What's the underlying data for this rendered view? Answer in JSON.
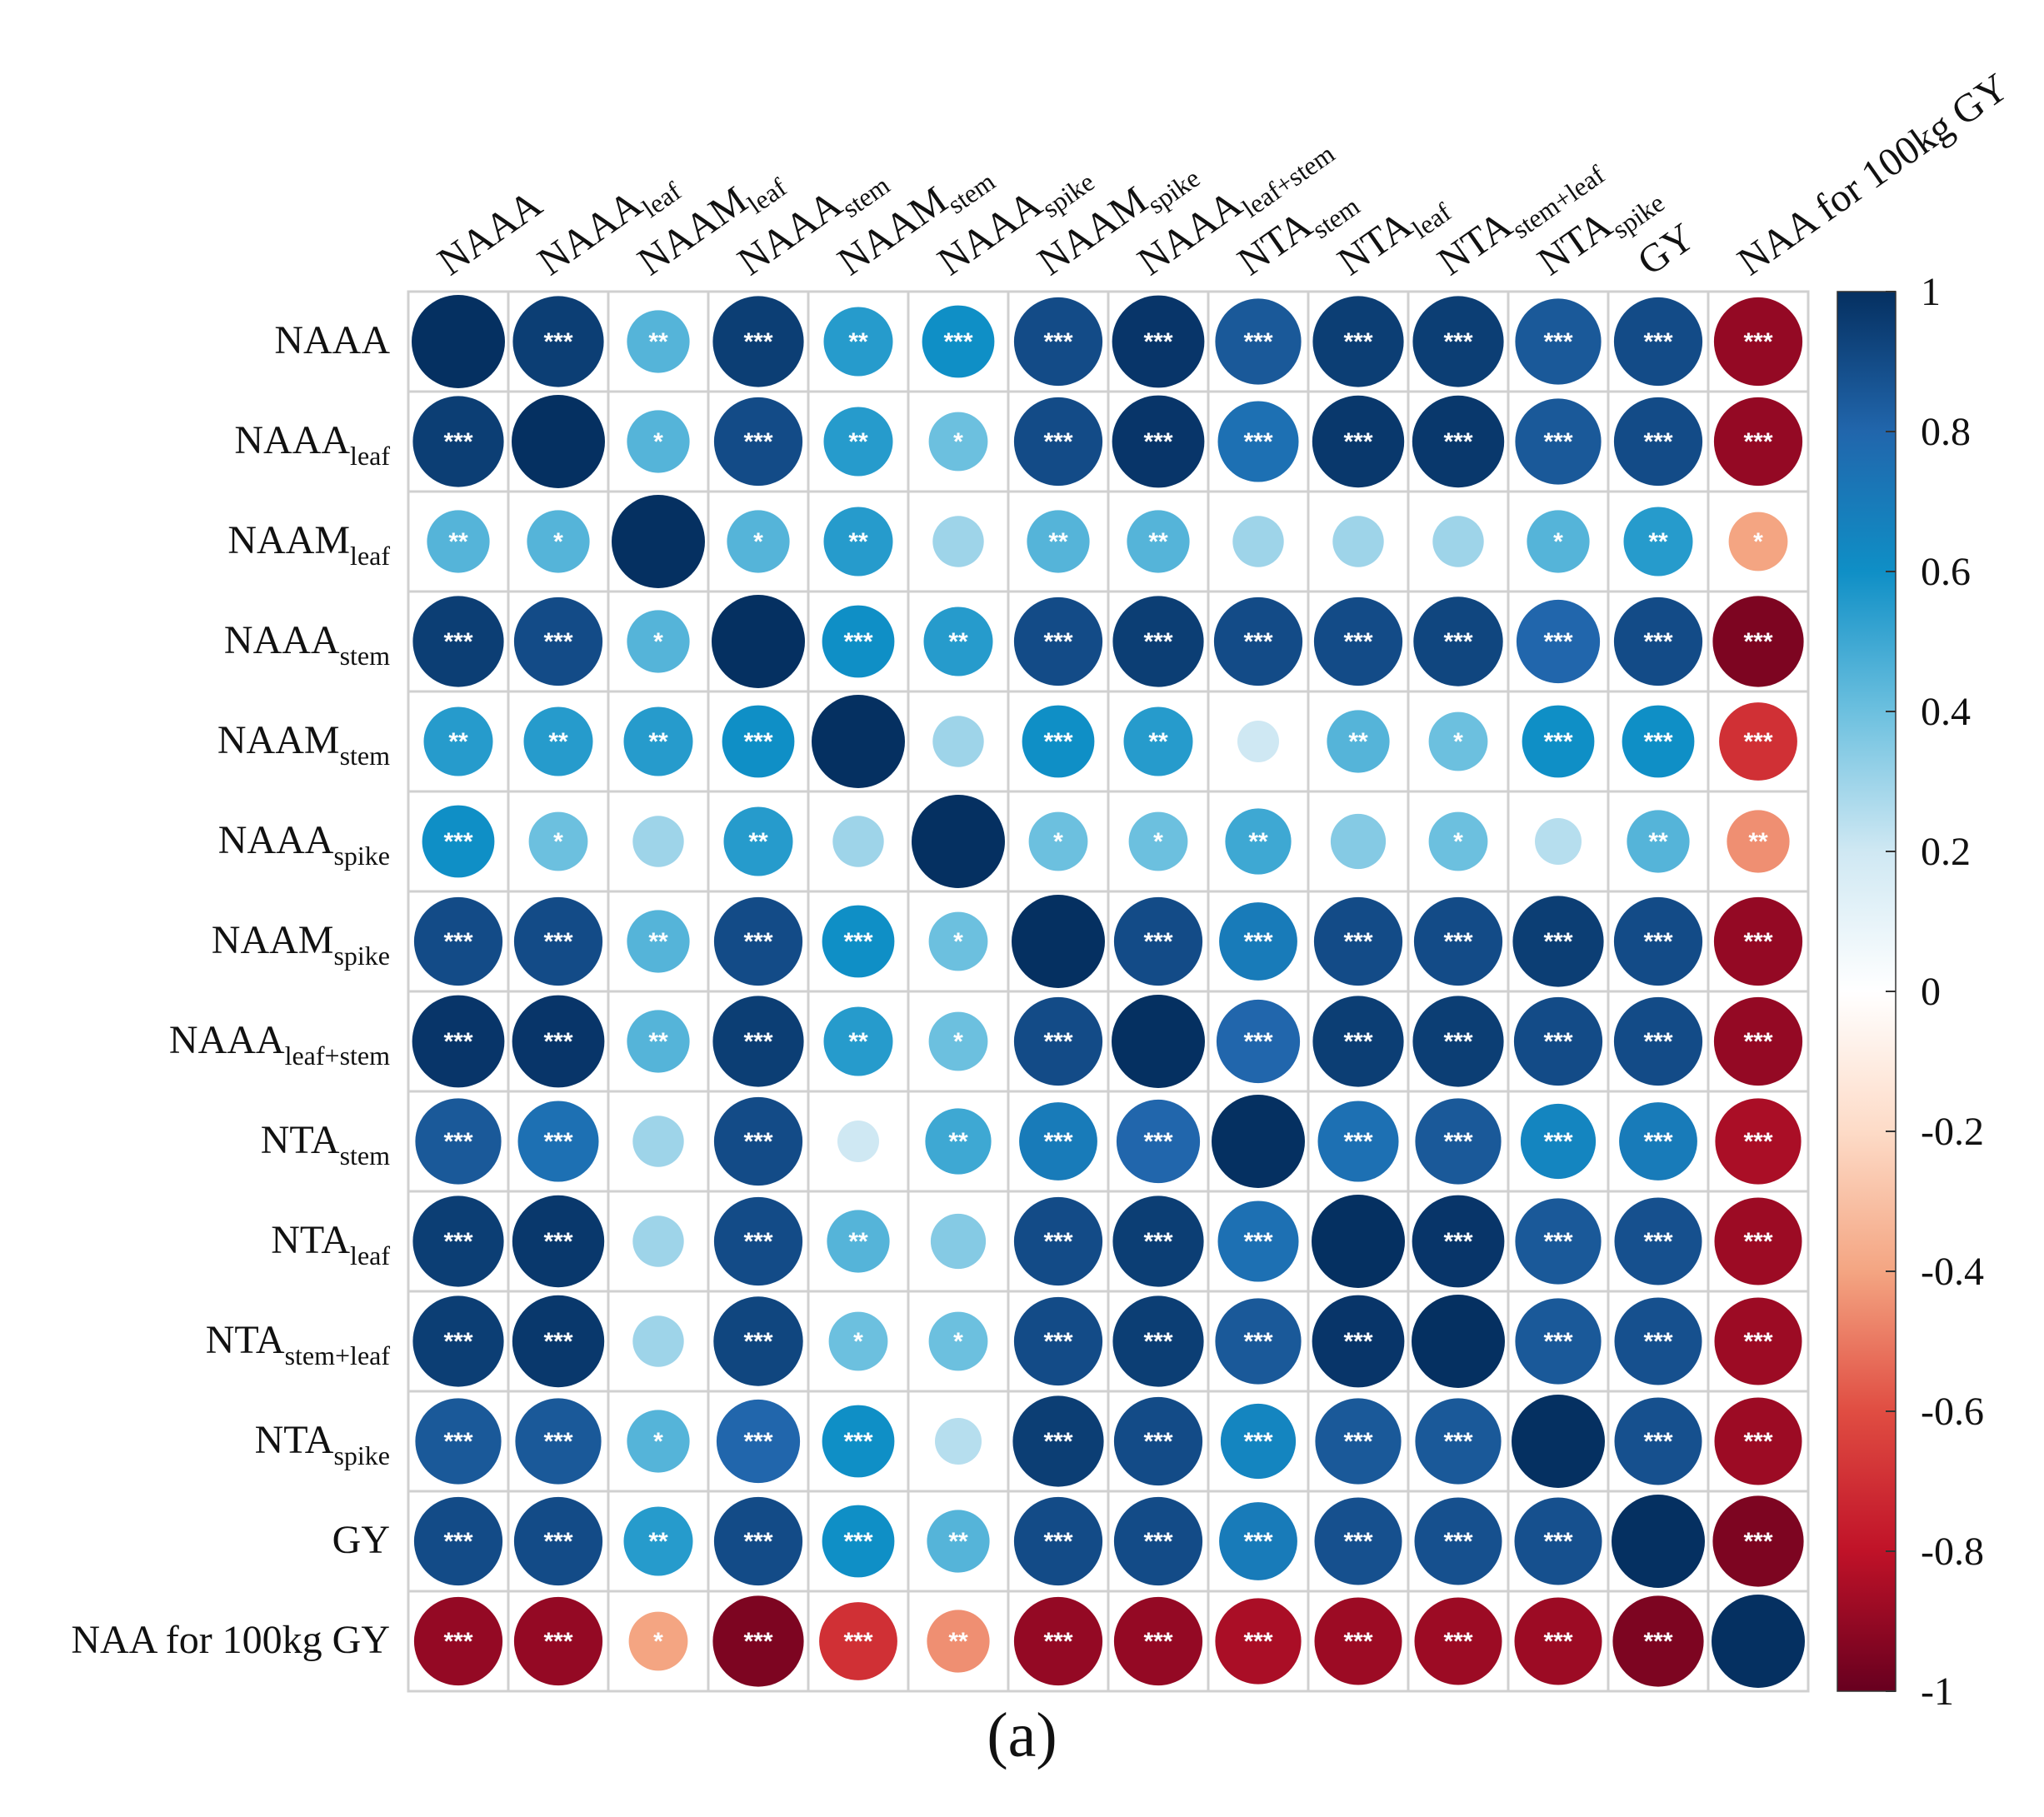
{
  "panel_label": "(a)",
  "chart_data": {
    "type": "heatmap",
    "subtype": "correlation-circle-matrix",
    "variables": [
      {
        "name": "NAAA",
        "sub": ""
      },
      {
        "name": "NAAA",
        "sub": "leaf"
      },
      {
        "name": "NAAM",
        "sub": "leaf"
      },
      {
        "name": "NAAA",
        "sub": "stem"
      },
      {
        "name": "NAAM",
        "sub": "stem"
      },
      {
        "name": "NAAA",
        "sub": "spike"
      },
      {
        "name": "NAAM",
        "sub": "spike"
      },
      {
        "name": "NAAA",
        "sub": "leaf+stem"
      },
      {
        "name": "NTA",
        "sub": "stem"
      },
      {
        "name": "NTA",
        "sub": "leaf"
      },
      {
        "name": "NTA",
        "sub": "stem+leaf"
      },
      {
        "name": "NTA",
        "sub": "spike"
      },
      {
        "name": "GY",
        "sub": ""
      },
      {
        "name": "NAA for 100kg GY",
        "sub": ""
      }
    ],
    "values": [
      [
        1.0,
        0.95,
        0.45,
        0.95,
        0.55,
        0.6,
        0.9,
        0.98,
        0.85,
        0.95,
        0.95,
        0.85,
        0.9,
        -0.9
      ],
      [
        0.95,
        1.0,
        0.45,
        0.9,
        0.55,
        0.4,
        0.9,
        0.98,
        0.75,
        0.97,
        0.97,
        0.85,
        0.9,
        -0.9
      ],
      [
        0.45,
        0.45,
        1.0,
        0.45,
        0.55,
        0.3,
        0.45,
        0.45,
        0.3,
        0.3,
        0.3,
        0.45,
        0.55,
        -0.4
      ],
      [
        0.95,
        0.9,
        0.45,
        1.0,
        0.6,
        0.55,
        0.9,
        0.95,
        0.9,
        0.9,
        0.92,
        0.8,
        0.9,
        -0.95
      ],
      [
        0.55,
        0.55,
        0.55,
        0.6,
        1.0,
        0.3,
        0.6,
        0.55,
        0.2,
        0.45,
        0.4,
        0.6,
        0.6,
        -0.7
      ],
      [
        0.6,
        0.4,
        0.3,
        0.55,
        0.3,
        1.0,
        0.4,
        0.4,
        0.5,
        0.35,
        0.4,
        0.25,
        0.45,
        -0.45
      ],
      [
        0.9,
        0.9,
        0.45,
        0.9,
        0.6,
        0.4,
        1.0,
        0.9,
        0.7,
        0.9,
        0.9,
        0.95,
        0.9,
        -0.9
      ],
      [
        0.98,
        0.98,
        0.45,
        0.95,
        0.55,
        0.4,
        0.9,
        1.0,
        0.8,
        0.95,
        0.95,
        0.9,
        0.9,
        -0.9
      ],
      [
        0.85,
        0.75,
        0.3,
        0.9,
        0.2,
        0.5,
        0.7,
        0.8,
        1.0,
        0.75,
        0.85,
        0.65,
        0.7,
        -0.85
      ],
      [
        0.95,
        0.97,
        0.3,
        0.9,
        0.45,
        0.35,
        0.9,
        0.95,
        0.75,
        1.0,
        0.98,
        0.85,
        0.88,
        -0.88
      ],
      [
        0.95,
        0.97,
        0.3,
        0.92,
        0.4,
        0.4,
        0.9,
        0.95,
        0.85,
        0.98,
        1.0,
        0.85,
        0.88,
        -0.88
      ],
      [
        0.85,
        0.85,
        0.45,
        0.8,
        0.6,
        0.25,
        0.95,
        0.9,
        0.65,
        0.85,
        0.85,
        1.0,
        0.88,
        -0.88
      ],
      [
        0.9,
        0.9,
        0.55,
        0.9,
        0.6,
        0.45,
        0.9,
        0.9,
        0.7,
        0.88,
        0.88,
        0.88,
        1.0,
        -0.95
      ],
      [
        -0.9,
        -0.9,
        -0.4,
        -0.95,
        -0.7,
        -0.45,
        -0.9,
        -0.9,
        -0.85,
        -0.88,
        -0.88,
        -0.88,
        -0.95,
        1.0
      ]
    ],
    "significance": [
      [
        "",
        "***",
        "**",
        "***",
        "**",
        "***",
        "***",
        "***",
        "***",
        "***",
        "***",
        "***",
        "***",
        "***"
      ],
      [
        "***",
        "",
        "*",
        "***",
        "**",
        "*",
        "***",
        "***",
        "***",
        "***",
        "***",
        "***",
        "***",
        "***"
      ],
      [
        "**",
        "*",
        "",
        "*",
        "**",
        "",
        "**",
        "**",
        "",
        "",
        "",
        "*",
        "**",
        "*"
      ],
      [
        "***",
        "***",
        "*",
        "",
        "***",
        "**",
        "***",
        "***",
        "***",
        "***",
        "***",
        "***",
        "***",
        "***"
      ],
      [
        "**",
        "**",
        "**",
        "***",
        "",
        "",
        "***",
        "**",
        "",
        "**",
        "*",
        "***",
        "***",
        "***"
      ],
      [
        "***",
        "*",
        "",
        "**",
        "",
        "",
        "*",
        "*",
        "**",
        "",
        "*",
        "",
        "**",
        "**"
      ],
      [
        "***",
        "***",
        "**",
        "***",
        "***",
        "*",
        "",
        "***",
        "***",
        "***",
        "***",
        "***",
        "***",
        "***"
      ],
      [
        "***",
        "***",
        "**",
        "***",
        "**",
        "*",
        "***",
        "",
        "***",
        "***",
        "***",
        "***",
        "***",
        "***"
      ],
      [
        "***",
        "***",
        "",
        "***",
        "",
        "**",
        "***",
        "***",
        "",
        "***",
        "***",
        "***",
        "***",
        "***"
      ],
      [
        "***",
        "***",
        "",
        "***",
        "**",
        "",
        "***",
        "***",
        "***",
        "",
        "***",
        "***",
        "***",
        "***"
      ],
      [
        "***",
        "***",
        "",
        "***",
        "*",
        "*",
        "***",
        "***",
        "***",
        "***",
        "",
        "***",
        "***",
        "***"
      ],
      [
        "***",
        "***",
        "*",
        "***",
        "***",
        "",
        "***",
        "***",
        "***",
        "***",
        "***",
        "",
        "***",
        "***"
      ],
      [
        "***",
        "***",
        "**",
        "***",
        "***",
        "**",
        "***",
        "***",
        "***",
        "***",
        "***",
        "***",
        "",
        "***"
      ],
      [
        "***",
        "***",
        "*",
        "***",
        "***",
        "**",
        "***",
        "***",
        "***",
        "***",
        "***",
        "***",
        "***",
        ""
      ]
    ],
    "colorbar": {
      "range": [
        -1,
        1
      ],
      "ticks": [
        "1",
        "0.8",
        "0.6",
        "0.4",
        "0.2",
        "0",
        "-0.2",
        "-0.4",
        "-0.6",
        "-0.8",
        "-1"
      ],
      "tick_values": [
        1,
        0.8,
        0.6,
        0.4,
        0.2,
        0,
        -0.2,
        -0.4,
        -0.6,
        -0.8,
        -1
      ]
    },
    "colors": {
      "negative_strong": "#67001f",
      "negative_mid": "#d6604d",
      "neutral": "#ffffff",
      "positive_mid": "#4393c3",
      "positive_strong": "#053061",
      "grid": "#d0d0d0"
    }
  }
}
